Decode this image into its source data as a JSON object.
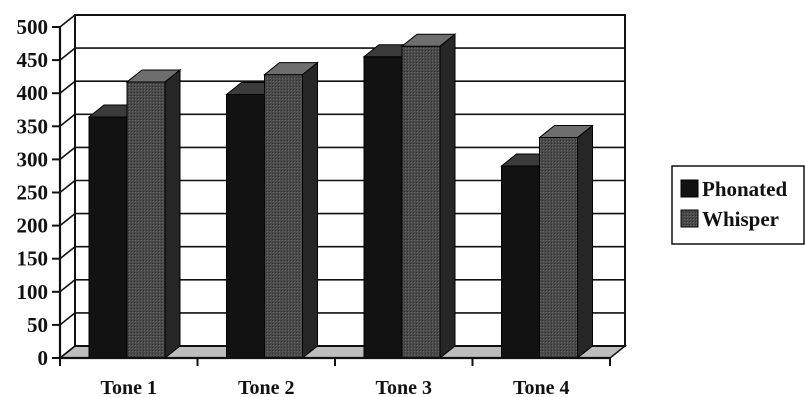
{
  "chart_data": {
    "type": "bar",
    "title": "",
    "xlabel": "",
    "ylabel": "",
    "categories": [
      "Tone 1",
      "Tone 2",
      "Tone 3",
      "Tone 4"
    ],
    "series": [
      {
        "name": "Phonated",
        "values": [
          364,
          398,
          455,
          290
        ]
      },
      {
        "name": "Whisper",
        "values": [
          417,
          428,
          471,
          333
        ]
      }
    ],
    "ylim": [
      0,
      500
    ],
    "yticks": [
      "0",
      "50",
      "100",
      "150",
      "200",
      "250",
      "300",
      "350",
      "400",
      "450",
      "500"
    ],
    "grid": true,
    "legend": "right",
    "style": "3d-clustered",
    "colors": {
      "Phonated": "#121212",
      "Whisper": "#4a4a4a"
    }
  }
}
